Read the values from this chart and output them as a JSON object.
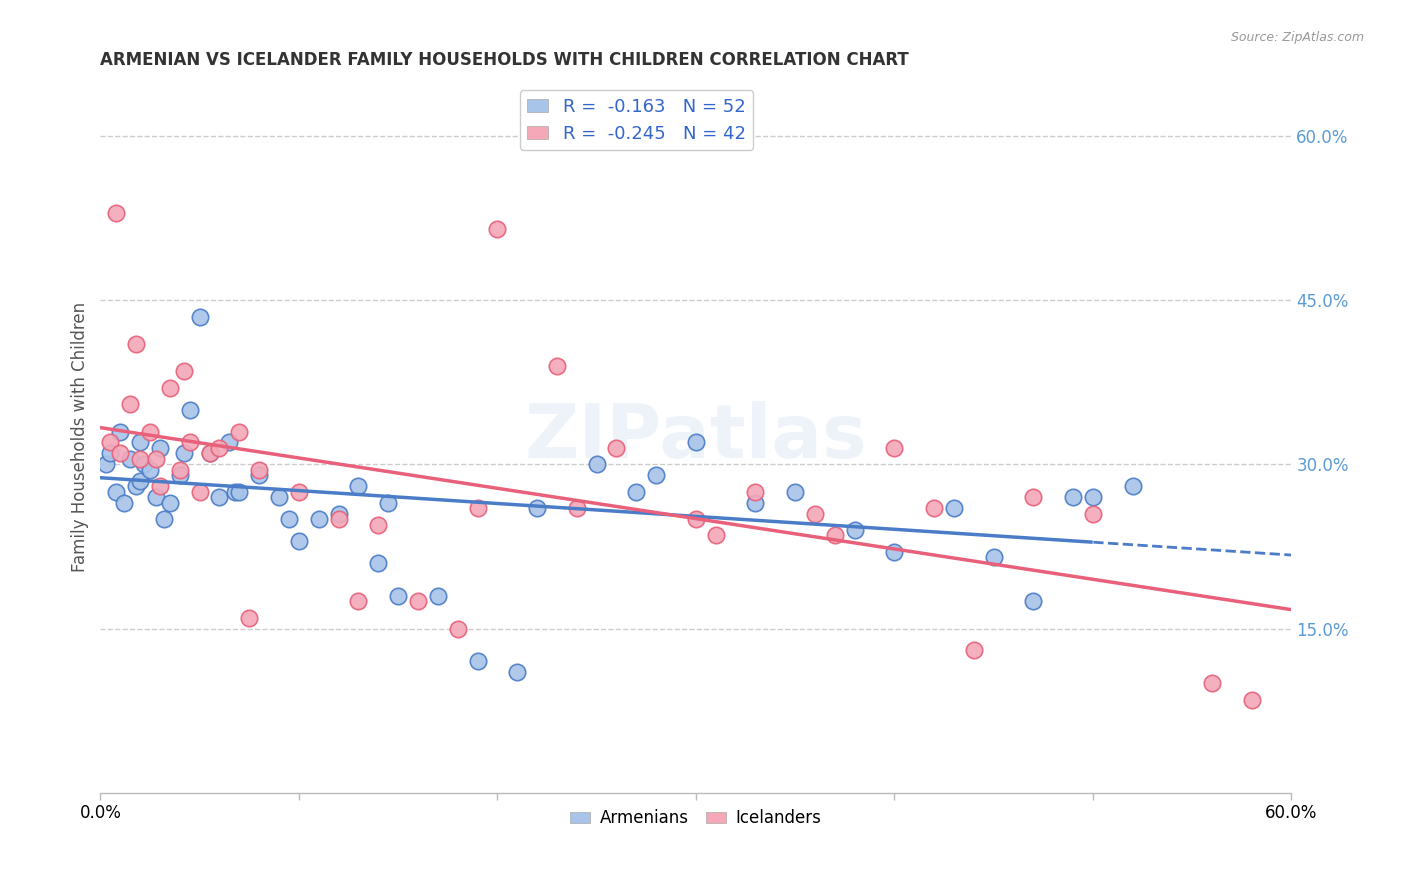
{
  "title": "ARMENIAN VS ICELANDER FAMILY HOUSEHOLDS WITH CHILDREN CORRELATION CHART",
  "source": "Source: ZipAtlas.com",
  "ylabel": "Family Households with Children",
  "armenian_R": -0.163,
  "armenian_N": 52,
  "icelander_R": -0.245,
  "icelander_N": 42,
  "armenian_color": "#a8c4e8",
  "icelander_color": "#f4a8b8",
  "armenian_line_color": "#4a7cc7",
  "icelander_line_color": "#e8607a",
  "watermark": "ZIPatlas",
  "background_color": "#ffffff",
  "grid_color": "#cccccc",
  "right_tick_color": "#5b9bd5",
  "armenian_x": [
    0.3,
    0.5,
    0.8,
    1.0,
    1.2,
    1.5,
    1.8,
    2.0,
    2.0,
    2.2,
    2.5,
    2.8,
    3.0,
    3.2,
    3.5,
    4.0,
    4.2,
    4.5,
    5.0,
    5.5,
    6.0,
    6.5,
    6.8,
    7.0,
    8.0,
    9.0,
    9.5,
    10.0,
    11.0,
    12.0,
    13.0,
    14.0,
    14.5,
    15.0,
    17.0,
    19.0,
    21.0,
    22.0,
    25.0,
    27.0,
    28.0,
    30.0,
    33.0,
    35.0,
    38.0,
    40.0,
    43.0,
    45.0,
    47.0,
    49.0,
    50.0,
    52.0
  ],
  "armenian_y": [
    30.0,
    31.0,
    27.5,
    33.0,
    26.5,
    30.5,
    28.0,
    32.0,
    28.5,
    30.0,
    29.5,
    27.0,
    31.5,
    25.0,
    26.5,
    29.0,
    31.0,
    35.0,
    43.5,
    31.0,
    27.0,
    32.0,
    27.5,
    27.5,
    29.0,
    27.0,
    25.0,
    23.0,
    25.0,
    25.5,
    28.0,
    21.0,
    26.5,
    18.0,
    18.0,
    12.0,
    11.0,
    26.0,
    30.0,
    27.5,
    29.0,
    32.0,
    26.5,
    27.5,
    24.0,
    22.0,
    26.0,
    21.5,
    17.5,
    27.0,
    27.0,
    28.0
  ],
  "icelander_x": [
    0.5,
    0.8,
    1.0,
    1.5,
    1.8,
    2.0,
    2.5,
    2.8,
    3.0,
    3.5,
    4.0,
    4.2,
    4.5,
    5.0,
    5.5,
    6.0,
    7.0,
    7.5,
    8.0,
    10.0,
    12.0,
    13.0,
    14.0,
    16.0,
    18.0,
    19.0,
    20.0,
    23.0,
    24.0,
    26.0,
    30.0,
    31.0,
    33.0,
    36.0,
    37.0,
    40.0,
    42.0,
    44.0,
    47.0,
    50.0,
    56.0,
    58.0
  ],
  "icelander_y": [
    32.0,
    53.0,
    31.0,
    35.5,
    41.0,
    30.5,
    33.0,
    30.5,
    28.0,
    37.0,
    29.5,
    38.5,
    32.0,
    27.5,
    31.0,
    31.5,
    33.0,
    16.0,
    29.5,
    27.5,
    25.0,
    17.5,
    24.5,
    17.5,
    15.0,
    26.0,
    51.5,
    39.0,
    26.0,
    31.5,
    25.0,
    23.5,
    27.5,
    25.5,
    23.5,
    31.5,
    26.0,
    13.0,
    27.0,
    25.5,
    10.0,
    8.5
  ]
}
